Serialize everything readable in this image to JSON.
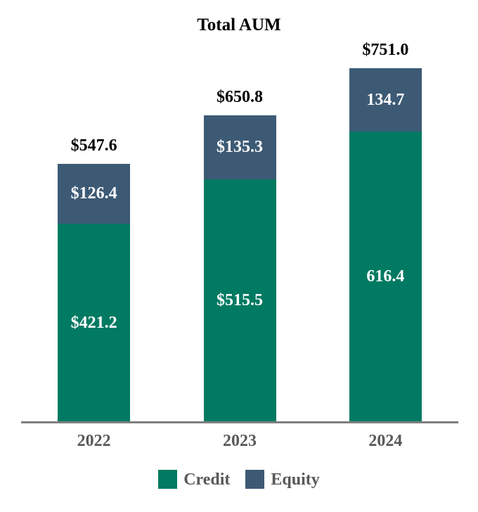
{
  "chart_data": {
    "type": "bar",
    "stacked": true,
    "title": "Total AUM",
    "categories": [
      "2022",
      "2023",
      "2024"
    ],
    "series": [
      {
        "name": "Credit",
        "color": "#007a62",
        "values": [
          421.2,
          515.5,
          616.4
        ],
        "labels": [
          "$421.2",
          "$515.5",
          "616.4"
        ]
      },
      {
        "name": "Equity",
        "color": "#3d5a75",
        "values": [
          126.4,
          135.3,
          134.7
        ],
        "labels": [
          "$126.4",
          "$135.3",
          "134.7"
        ]
      }
    ],
    "totals": [
      547.6,
      650.8,
      751.0
    ],
    "total_labels": [
      "$547.6",
      "$650.8",
      "$751.0"
    ],
    "legend_position": "bottom",
    "grid": false,
    "axis_line_color": "#7f7f7f",
    "tick_label_color": "#595959",
    "legend_text_color": "#595959",
    "value_label_color_inside": "#ffffff",
    "value_label_color_total": "#000000",
    "units": "USD billions (implied)"
  }
}
